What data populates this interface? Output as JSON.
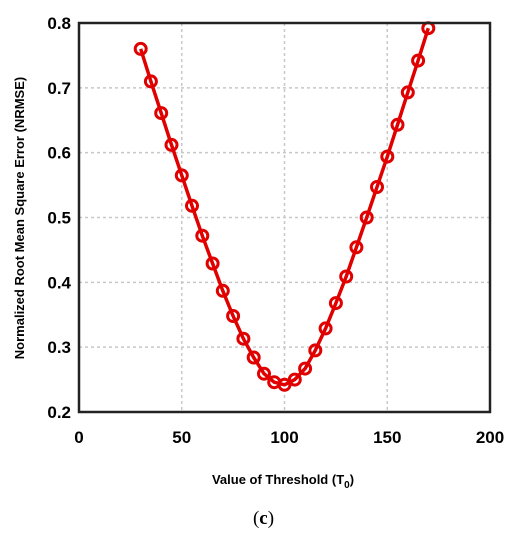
{
  "chart_data": {
    "type": "line",
    "xlabel": "Value of Threshold (T",
    "xlabel_subscript": "0",
    "xlabel_suffix": ")",
    "ylabel": "Normalized Root Mean Square Error (NRMSE)",
    "xlim": [
      0,
      200
    ],
    "ylim": [
      0.2,
      0.8
    ],
    "xticks": [
      0,
      50,
      100,
      150,
      200
    ],
    "yticks": [
      0.2,
      0.3,
      0.4,
      0.5,
      0.6,
      0.7,
      0.8
    ],
    "grid": true,
    "line_color": "#e00000",
    "marker": "circle",
    "series": [
      {
        "x": [
          30,
          35,
          40,
          45,
          50,
          55,
          60,
          65,
          70,
          75,
          80,
          85,
          90,
          95,
          100,
          105,
          110,
          115,
          120,
          125,
          130,
          135,
          140,
          145,
          150,
          155,
          160,
          165,
          170
        ],
        "values": [
          0.76,
          0.71,
          0.661,
          0.612,
          0.565,
          0.518,
          0.472,
          0.429,
          0.387,
          0.348,
          0.313,
          0.284,
          0.259,
          0.246,
          0.242,
          0.25,
          0.267,
          0.295,
          0.329,
          0.368,
          0.409,
          0.454,
          0.5,
          0.547,
          0.594,
          0.643,
          0.693,
          0.742,
          0.792
        ]
      }
    ]
  },
  "caption": {
    "open": "(",
    "letter": "c",
    "close": ")"
  }
}
